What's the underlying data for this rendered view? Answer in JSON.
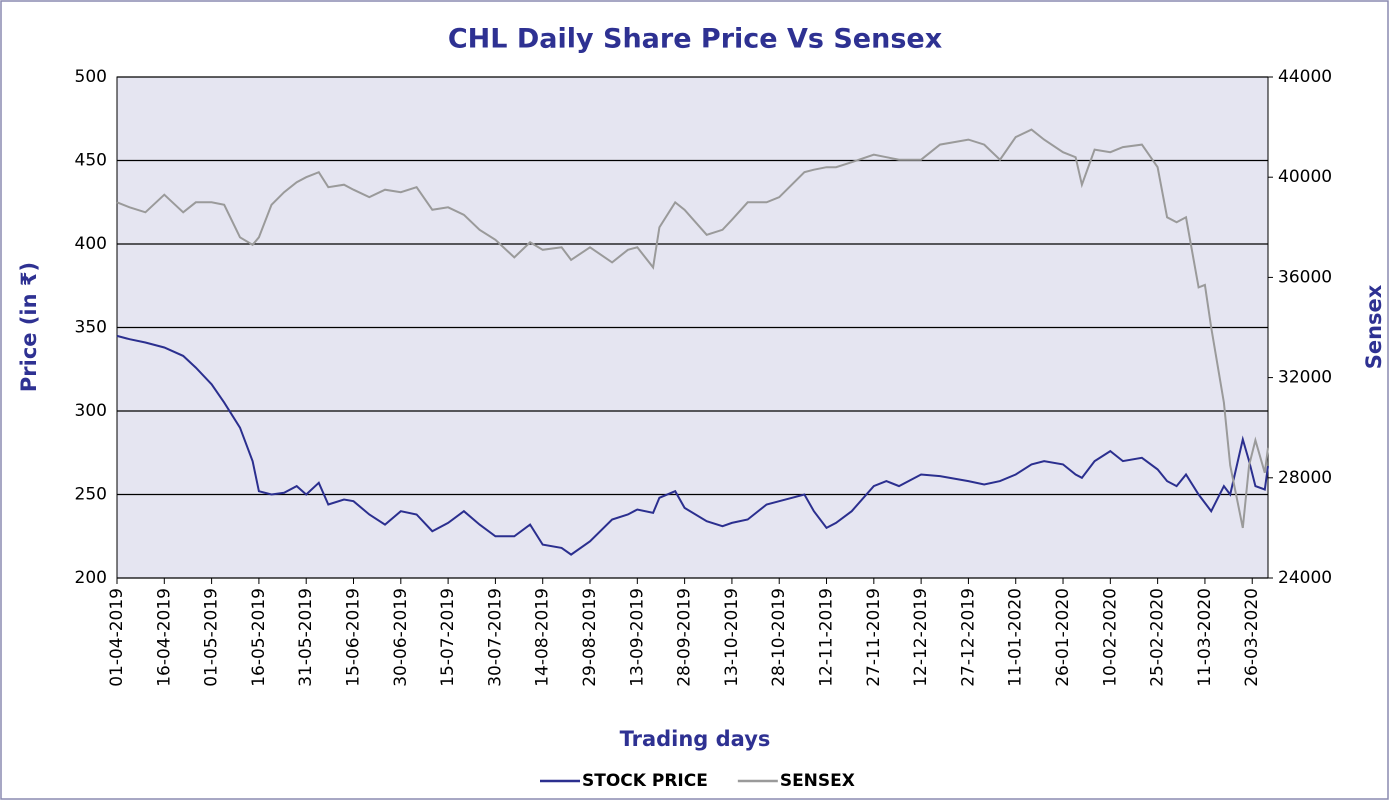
{
  "chart_data": {
    "type": "line",
    "title": "CHL Daily Share Price Vs Sensex",
    "x_label": "Trading days",
    "y_label": "Price (in ₹)",
    "y2_label": "Sensex",
    "x": [
      "01-04-2019",
      "05-04-2019",
      "10-04-2019",
      "16-04-2019",
      "22-04-2019",
      "26-04-2019",
      "01-05-2019",
      "05-05-2019",
      "10-05-2019",
      "14-05-2019",
      "16-05-2019",
      "20-05-2019",
      "24-05-2019",
      "28-05-2019",
      "31-05-2019",
      "04-06-2019",
      "07-06-2019",
      "12-06-2019",
      "15-06-2019",
      "20-06-2019",
      "25-06-2019",
      "30-06-2019",
      "05-07-2019",
      "10-07-2019",
      "15-07-2019",
      "20-07-2019",
      "25-07-2019",
      "30-07-2019",
      "05-08-2019",
      "10-08-2019",
      "14-08-2019",
      "20-08-2019",
      "23-08-2019",
      "29-08-2019",
      "05-09-2019",
      "10-09-2019",
      "13-09-2019",
      "18-09-2019",
      "20-09-2019",
      "25-09-2019",
      "28-09-2019",
      "05-10-2019",
      "10-10-2019",
      "13-10-2019",
      "18-10-2019",
      "24-10-2019",
      "28-10-2019",
      "05-11-2019",
      "08-11-2019",
      "12-11-2019",
      "15-11-2019",
      "20-11-2019",
      "27-11-2019",
      "01-12-2019",
      "05-12-2019",
      "12-12-2019",
      "18-12-2019",
      "27-12-2019",
      "01-01-2020",
      "06-01-2020",
      "11-01-2020",
      "16-01-2020",
      "20-01-2020",
      "26-01-2020",
      "30-01-2020",
      "01-02-2020",
      "05-02-2020",
      "10-02-2020",
      "14-02-2020",
      "20-02-2020",
      "25-02-2020",
      "28-02-2020",
      "02-03-2020",
      "05-03-2020",
      "09-03-2020",
      "11-03-2020",
      "13-03-2020",
      "17-03-2020",
      "19-03-2020",
      "23-03-2020",
      "25-03-2020",
      "27-03-2020",
      "30-03-2020",
      "31-03-2020"
    ],
    "series": [
      {
        "name": "STOCK PRICE",
        "color": "#2b2f8f",
        "values": [
          345,
          343,
          341,
          338,
          333,
          326,
          316,
          305,
          290,
          270,
          252,
          250,
          251,
          255,
          250,
          257,
          244,
          247,
          246,
          238,
          232,
          240,
          238,
          228,
          233,
          240,
          232,
          225,
          225,
          232,
          220,
          218,
          214,
          222,
          235,
          238,
          241,
          239,
          248,
          252,
          242,
          234,
          231,
          233,
          235,
          244,
          246,
          250,
          240,
          230,
          233,
          240,
          255,
          258,
          255,
          262,
          261,
          258,
          256,
          258,
          262,
          268,
          270,
          268,
          262,
          260,
          270,
          276,
          270,
          272,
          265,
          258,
          255,
          262,
          250,
          245,
          240,
          255,
          250,
          283,
          270,
          255,
          253,
          267
        ]
      },
      {
        "name": "SENSEX",
        "color": "#9a9a9a",
        "axis": "y2",
        "values": [
          39000,
          38800,
          38600,
          39300,
          38600,
          39000,
          39000,
          38900,
          37600,
          37300,
          37600,
          38900,
          39400,
          39800,
          40000,
          40200,
          39600,
          39700,
          39500,
          39200,
          39500,
          39400,
          39600,
          38700,
          38800,
          38500,
          37900,
          37500,
          36800,
          37400,
          37100,
          37200,
          36700,
          37200,
          36600,
          37100,
          37200,
          36400,
          38000,
          39000,
          38700,
          37700,
          37900,
          38300,
          39000,
          39000,
          39200,
          40200,
          40300,
          40400,
          40400,
          40600,
          40900,
          40800,
          40700,
          40700,
          41300,
          41500,
          41300,
          40700,
          41600,
          41900,
          41500,
          41000,
          40800,
          39700,
          41100,
          41000,
          41200,
          41300,
          40400,
          38400,
          38200,
          38400,
          35600,
          35700,
          34000,
          31000,
          28500,
          26000,
          28500,
          29500,
          28200,
          29200
        ]
      }
    ],
    "xlim": [
      "01-04-2019",
      "31-03-2020"
    ],
    "xticks": [
      "01-04-2019",
      "16-04-2019",
      "01-05-2019",
      "16-05-2019",
      "31-05-2019",
      "15-06-2019",
      "30-06-2019",
      "15-07-2019",
      "30-07-2019",
      "14-08-2019",
      "29-08-2019",
      "13-09-2019",
      "28-09-2019",
      "13-10-2019",
      "28-10-2019",
      "12-11-2019",
      "27-11-2019",
      "12-12-2019",
      "27-12-2019",
      "11-01-2020",
      "26-01-2020",
      "10-02-2020",
      "25-02-2020",
      "11-03-2020",
      "26-03-2020"
    ],
    "ylim": [
      200,
      500
    ],
    "yticks": [
      200,
      250,
      300,
      350,
      400,
      450,
      500
    ],
    "y2lim": [
      24000,
      44000
    ],
    "y2ticks": [
      24000,
      28000,
      32000,
      36000,
      40000,
      44000
    ],
    "grid": true,
    "legend": "bottom"
  }
}
